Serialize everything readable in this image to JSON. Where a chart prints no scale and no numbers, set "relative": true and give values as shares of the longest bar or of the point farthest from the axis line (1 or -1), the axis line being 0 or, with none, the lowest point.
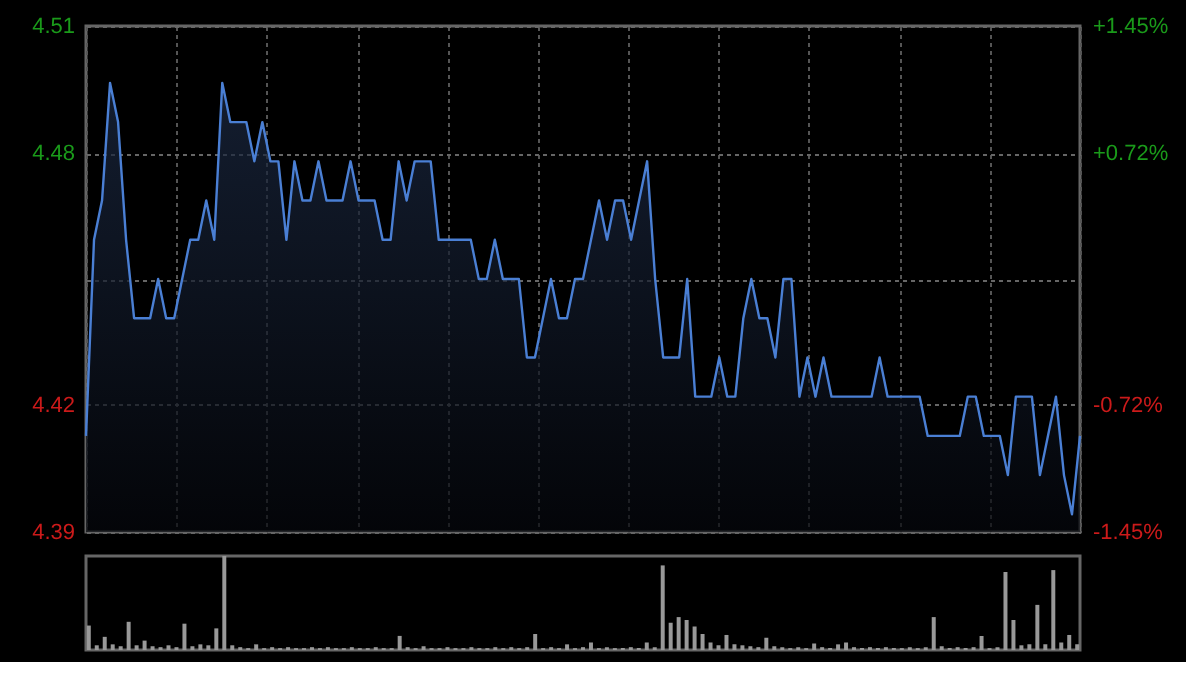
{
  "chart_data": [
    {
      "type": "area",
      "categories": [
        null,
        null,
        null,
        null,
        null,
        null,
        null,
        null,
        null,
        null,
        null,
        null,
        null,
        null,
        null,
        null,
        null,
        null,
        null,
        null,
        null,
        null,
        null,
        null,
        null,
        null,
        null,
        null,
        null,
        null,
        null,
        null,
        null,
        null,
        null,
        null,
        null,
        null,
        null,
        null,
        null,
        null,
        null,
        null,
        null,
        null,
        null,
        null,
        null,
        null,
        null,
        null,
        null,
        null,
        null,
        null,
        null,
        null,
        null,
        null,
        null,
        null,
        null,
        null,
        null,
        null,
        null,
        null,
        null,
        null,
        null,
        null,
        null,
        null,
        null,
        null,
        null,
        null,
        null,
        null,
        null,
        null,
        null,
        null,
        null,
        null,
        null,
        null,
        null,
        null,
        null,
        null,
        null,
        null,
        null,
        null,
        null,
        null,
        null,
        null,
        null,
        null,
        null,
        null,
        null,
        null,
        null,
        null,
        null,
        null,
        null,
        null,
        null,
        null,
        null,
        null,
        null,
        null,
        null,
        null,
        null,
        null,
        null,
        null,
        null
      ],
      "series": [
        {
          "color": "#4a7fd4",
          "values": [
            4.41,
            4.46,
            4.47,
            4.5,
            4.49,
            4.46,
            4.44,
            4.44,
            4.44,
            4.45,
            4.44,
            4.44,
            4.45,
            4.46,
            4.46,
            4.47,
            4.46,
            4.5,
            4.49,
            4.49,
            4.49,
            4.48,
            4.49,
            4.48,
            4.48,
            4.46,
            4.48,
            4.47,
            4.47,
            4.48,
            4.47,
            4.47,
            4.47,
            4.48,
            4.47,
            4.47,
            4.47,
            4.46,
            4.46,
            4.48,
            4.47,
            4.48,
            4.48,
            4.48,
            4.46,
            4.46,
            4.46,
            4.46,
            4.46,
            4.45,
            4.45,
            4.46,
            4.45,
            4.45,
            4.45,
            4.43,
            4.43,
            4.44,
            4.45,
            4.44,
            4.44,
            4.45,
            4.45,
            4.46,
            4.47,
            4.46,
            4.47,
            4.47,
            4.46,
            4.47,
            4.48,
            4.45,
            4.43,
            4.43,
            4.43,
            4.45,
            4.42,
            4.42,
            4.42,
            4.43,
            4.42,
            4.42,
            4.44,
            4.45,
            4.44,
            4.44,
            4.43,
            4.45,
            4.45,
            4.42,
            4.43,
            4.42,
            4.43,
            4.42,
            4.42,
            4.42,
            4.42,
            4.42,
            4.42,
            4.43,
            4.42,
            4.42,
            4.42,
            4.42,
            4.42,
            4.41,
            4.41,
            4.41,
            4.41,
            4.41,
            4.42,
            4.42,
            4.41,
            4.41,
            4.41,
            4.4,
            4.42,
            4.42,
            4.42,
            4.4,
            4.41,
            4.42,
            4.4,
            4.39,
            4.41
          ]
        }
      ],
      "ylim": [
        4.3855,
        4.5145
      ],
      "yticks": [
        {
          "value": 4.3855,
          "label": "4.39"
        },
        {
          "value": 4.418,
          "label": "4.42"
        },
        {
          "value": 4.45,
          "label": null
        },
        {
          "value": 4.482,
          "label": "4.48"
        },
        {
          "value": 4.5145,
          "label": "4.51"
        }
      ],
      "y2lim": [
        -1.45,
        1.45
      ],
      "y2ticks": [
        {
          "value": -1.45,
          "label": "-1.45%"
        },
        {
          "value": -0.72,
          "label": "-0.72%"
        },
        {
          "value": 0,
          "label": null
        },
        {
          "value": 0.72,
          "label": "+0.72%"
        },
        {
          "value": 1.45,
          "label": "+1.45%"
        }
      ],
      "grid": true,
      "tick_labels": "y"
    },
    {
      "type": "bar",
      "relative": true,
      "color": "#999999",
      "tick_labels": false,
      "categories": [
        null,
        null,
        null,
        null,
        null,
        null,
        null,
        null,
        null,
        null,
        null,
        null,
        null,
        null,
        null,
        null,
        null,
        null,
        null,
        null,
        null,
        null,
        null,
        null,
        null,
        null,
        null,
        null,
        null,
        null,
        null,
        null,
        null,
        null,
        null,
        null,
        null,
        null,
        null,
        null,
        null,
        null,
        null,
        null,
        null,
        null,
        null,
        null,
        null,
        null,
        null,
        null,
        null,
        null,
        null,
        null,
        null,
        null,
        null,
        null,
        null,
        null,
        null,
        null,
        null,
        null,
        null,
        null,
        null,
        null,
        null,
        null,
        null,
        null,
        null,
        null,
        null,
        null,
        null,
        null,
        null,
        null,
        null,
        null,
        null,
        null,
        null,
        null,
        null,
        null,
        null,
        null,
        null,
        null,
        null,
        null,
        null,
        null,
        null,
        null,
        null,
        null,
        null,
        null,
        null,
        null,
        null,
        null,
        null,
        null,
        null,
        null,
        null,
        null,
        null,
        null,
        null,
        null,
        null,
        null,
        null,
        null,
        null,
        null,
        null
      ],
      "values": [
        0.26,
        0.05,
        0.14,
        0.06,
        0.04,
        0.3,
        0.05,
        0.1,
        0.04,
        0.03,
        0.05,
        0.03,
        0.28,
        0.04,
        0.06,
        0.05,
        0.23,
        1.0,
        0.05,
        0.03,
        0.02,
        0.06,
        0.02,
        0.03,
        0.02,
        0.03,
        0.02,
        0.02,
        0.03,
        0.02,
        0.03,
        0.02,
        0.02,
        0.03,
        0.02,
        0.02,
        0.03,
        0.02,
        0.02,
        0.15,
        0.03,
        0.02,
        0.04,
        0.02,
        0.02,
        0.03,
        0.02,
        0.02,
        0.03,
        0.02,
        0.02,
        0.03,
        0.02,
        0.03,
        0.02,
        0.03,
        0.17,
        0.02,
        0.03,
        0.02,
        0.06,
        0.02,
        0.03,
        0.08,
        0.02,
        0.03,
        0.02,
        0.02,
        0.03,
        0.02,
        0.08,
        0.03,
        0.9,
        0.29,
        0.35,
        0.32,
        0.25,
        0.17,
        0.08,
        0.05,
        0.16,
        0.06,
        0.05,
        0.04,
        0.03,
        0.13,
        0.04,
        0.03,
        0.02,
        0.03,
        0.02,
        0.07,
        0.03,
        0.02,
        0.06,
        0.08,
        0.03,
        0.02,
        0.03,
        0.02,
        0.03,
        0.02,
        0.02,
        0.03,
        0.02,
        0.03,
        0.35,
        0.04,
        0.02,
        0.03,
        0.02,
        0.03,
        0.15,
        0.02,
        0.03,
        0.83,
        0.32,
        0.05,
        0.06,
        0.48,
        0.06,
        0.85,
        0.08,
        0.16,
        0.06
      ]
    }
  ]
}
